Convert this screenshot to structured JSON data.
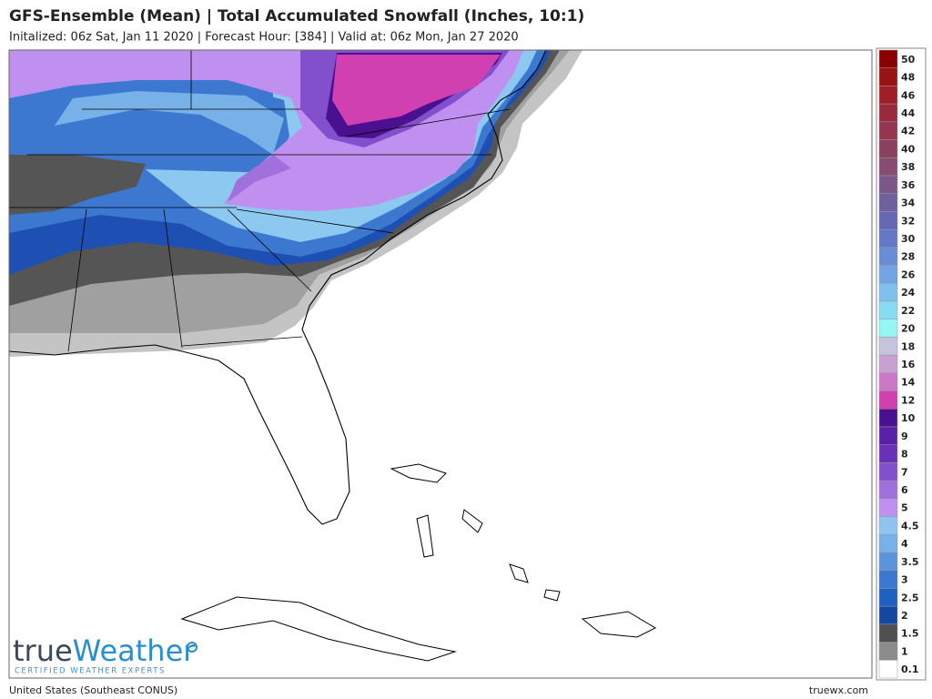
{
  "header": {
    "title": "GFS-Ensemble (Mean) | Total Accumulated Snowfall (Inches, 10:1)",
    "subtitle": "Initalized: 06z Sat, Jan 11 2020  |  Forecast Hour: [384]  |  Valid at: 06z Mon, Jan 27 2020"
  },
  "legend": {
    "entries": [
      {
        "label": "50",
        "color": "#8b0000"
      },
      {
        "label": "48",
        "color": "#981414"
      },
      {
        "label": "46",
        "color": "#a01e28"
      },
      {
        "label": "44",
        "color": "#992a3c"
      },
      {
        "label": "42",
        "color": "#943650"
      },
      {
        "label": "40",
        "color": "#8c4060"
      },
      {
        "label": "38",
        "color": "#864c74"
      },
      {
        "label": "36",
        "color": "#7c5888"
      },
      {
        "label": "34",
        "color": "#70609e"
      },
      {
        "label": "32",
        "color": "#6468b4"
      },
      {
        "label": "30",
        "color": "#6478c8"
      },
      {
        "label": "28",
        "color": "#6a8cd6"
      },
      {
        "label": "26",
        "color": "#74a4e4"
      },
      {
        "label": "24",
        "color": "#7ec0ee"
      },
      {
        "label": "22",
        "color": "#88dcf2"
      },
      {
        "label": "20",
        "color": "#96f6f6"
      },
      {
        "label": "18",
        "color": "#c4c4dc"
      },
      {
        "label": "16",
        "color": "#c8a0d2"
      },
      {
        "label": "14",
        "color": "#cc78c8"
      },
      {
        "label": "12",
        "color": "#d040b0"
      },
      {
        "label": "10",
        "color": "#4a1090"
      },
      {
        "label": "9",
        "color": "#5a20a8"
      },
      {
        "label": "8",
        "color": "#6a30b8"
      },
      {
        "label": "7",
        "color": "#8250cc"
      },
      {
        "label": "6",
        "color": "#a070dc"
      },
      {
        "label": "5",
        "color": "#c090f0"
      },
      {
        "label": "4.5",
        "color": "#90c4f0"
      },
      {
        "label": "4",
        "color": "#78b0e8"
      },
      {
        "label": "3.5",
        "color": "#5a94dc"
      },
      {
        "label": "3",
        "color": "#3c78d0"
      },
      {
        "label": "2.5",
        "color": "#2060c0"
      },
      {
        "label": "2",
        "color": "#1448a0"
      },
      {
        "label": "1.5",
        "color": "#505050"
      },
      {
        "label": "1",
        "color": "#8c8c8c"
      },
      {
        "label": "0.1",
        "color": "#ffffff"
      }
    ]
  },
  "logo": {
    "name_part1": "true",
    "name_part2": "Weather",
    "tagline": "CERTIFIED WEATHER EXPERTS"
  },
  "footer": {
    "region": "United States (Southeast CONUS)",
    "site": "truewx.com"
  }
}
